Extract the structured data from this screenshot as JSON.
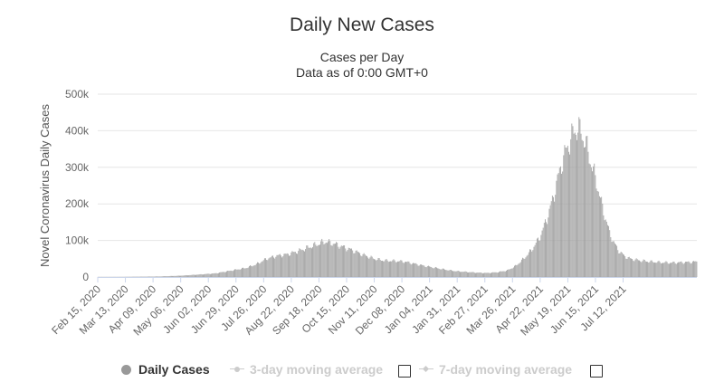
{
  "header": {
    "title": "Daily New Cases",
    "subtitle_line1": "Cases per Day",
    "subtitle_line2": "Data as of 0:00 GMT+0"
  },
  "legend": {
    "items": [
      {
        "label": "Daily Cases",
        "active": true
      },
      {
        "label": "3-day moving average",
        "active": false
      },
      {
        "label": "7-day moving average",
        "active": false
      }
    ]
  },
  "colors": {
    "bars": "#9e9e9e",
    "grid": "#e6e6e6",
    "axis": "#ccd6eb",
    "inactive": "#cccccc"
  },
  "chart_data": {
    "type": "bar",
    "title": "Daily New Cases",
    "subtitle": "Cases per Day",
    "ylabel": "Novel Coronavirus Daily Cases",
    "xlabel": "",
    "ylim": [
      0,
      500000
    ],
    "y_ticks": [
      0,
      100000,
      200000,
      300000,
      400000,
      500000
    ],
    "y_tick_labels": [
      "0",
      "100k",
      "200k",
      "300k",
      "400k",
      "500k"
    ],
    "x_tick_labels": [
      "Feb 15, 2020",
      "Mar 13, 2020",
      "Apr 09, 2020",
      "May 06, 2020",
      "Jun 02, 2020",
      "Jun 29, 2020",
      "Jul 26, 2020",
      "Aug 22, 2020",
      "Sep 18, 2020",
      "Oct 15, 2020",
      "Nov 11, 2020",
      "Dec 08, 2020",
      "Jan 04, 2021",
      "Jan 31, 2021",
      "Feb 27, 2021",
      "Mar 26, 2021",
      "Apr 22, 2021",
      "May 19, 2021",
      "Jun 15, 2021",
      "Jul 12, 2021"
    ],
    "tick_interval_days": 27,
    "start_date": "Feb 15, 2020",
    "grid": true,
    "legend_position": "bottom-center",
    "series": [
      {
        "name": "Daily Cases",
        "anchors": [
          [
            0,
            100
          ],
          [
            20,
            200
          ],
          [
            40,
            800
          ],
          [
            60,
            1500
          ],
          [
            80,
            3500
          ],
          [
            100,
            7000
          ],
          [
            115,
            10000
          ],
          [
            125,
            15000
          ],
          [
            135,
            20000
          ],
          [
            145,
            25000
          ],
          [
            155,
            35000
          ],
          [
            165,
            50000
          ],
          [
            175,
            58000
          ],
          [
            185,
            62000
          ],
          [
            195,
            70000
          ],
          [
            205,
            80000
          ],
          [
            215,
            90000
          ],
          [
            222,
            97000
          ],
          [
            230,
            92000
          ],
          [
            240,
            82000
          ],
          [
            250,
            72000
          ],
          [
            260,
            60000
          ],
          [
            270,
            50000
          ],
          [
            280,
            45000
          ],
          [
            290,
            44000
          ],
          [
            300,
            42000
          ],
          [
            310,
            36000
          ],
          [
            320,
            30000
          ],
          [
            330,
            25000
          ],
          [
            340,
            20000
          ],
          [
            350,
            16000
          ],
          [
            360,
            14000
          ],
          [
            370,
            12000
          ],
          [
            380,
            11000
          ],
          [
            390,
            13000
          ],
          [
            400,
            18000
          ],
          [
            408,
            30000
          ],
          [
            416,
            50000
          ],
          [
            424,
            75000
          ],
          [
            432,
            110000
          ],
          [
            440,
            170000
          ],
          [
            446,
            230000
          ],
          [
            452,
            300000
          ],
          [
            458,
            350000
          ],
          [
            464,
            390000
          ],
          [
            468,
            408000
          ],
          [
            472,
            395000
          ],
          [
            476,
            370000
          ],
          [
            480,
            330000
          ],
          [
            484,
            290000
          ],
          [
            488,
            250000
          ],
          [
            492,
            200000
          ],
          [
            496,
            160000
          ],
          [
            500,
            120000
          ],
          [
            504,
            95000
          ],
          [
            508,
            75000
          ],
          [
            514,
            58000
          ],
          [
            520,
            50000
          ],
          [
            530,
            45000
          ],
          [
            540,
            42000
          ],
          [
            550,
            40000
          ],
          [
            560,
            39000
          ],
          [
            570,
            40000
          ],
          [
            580,
            41000
          ],
          [
            585,
            42000
          ]
        ]
      }
    ]
  }
}
